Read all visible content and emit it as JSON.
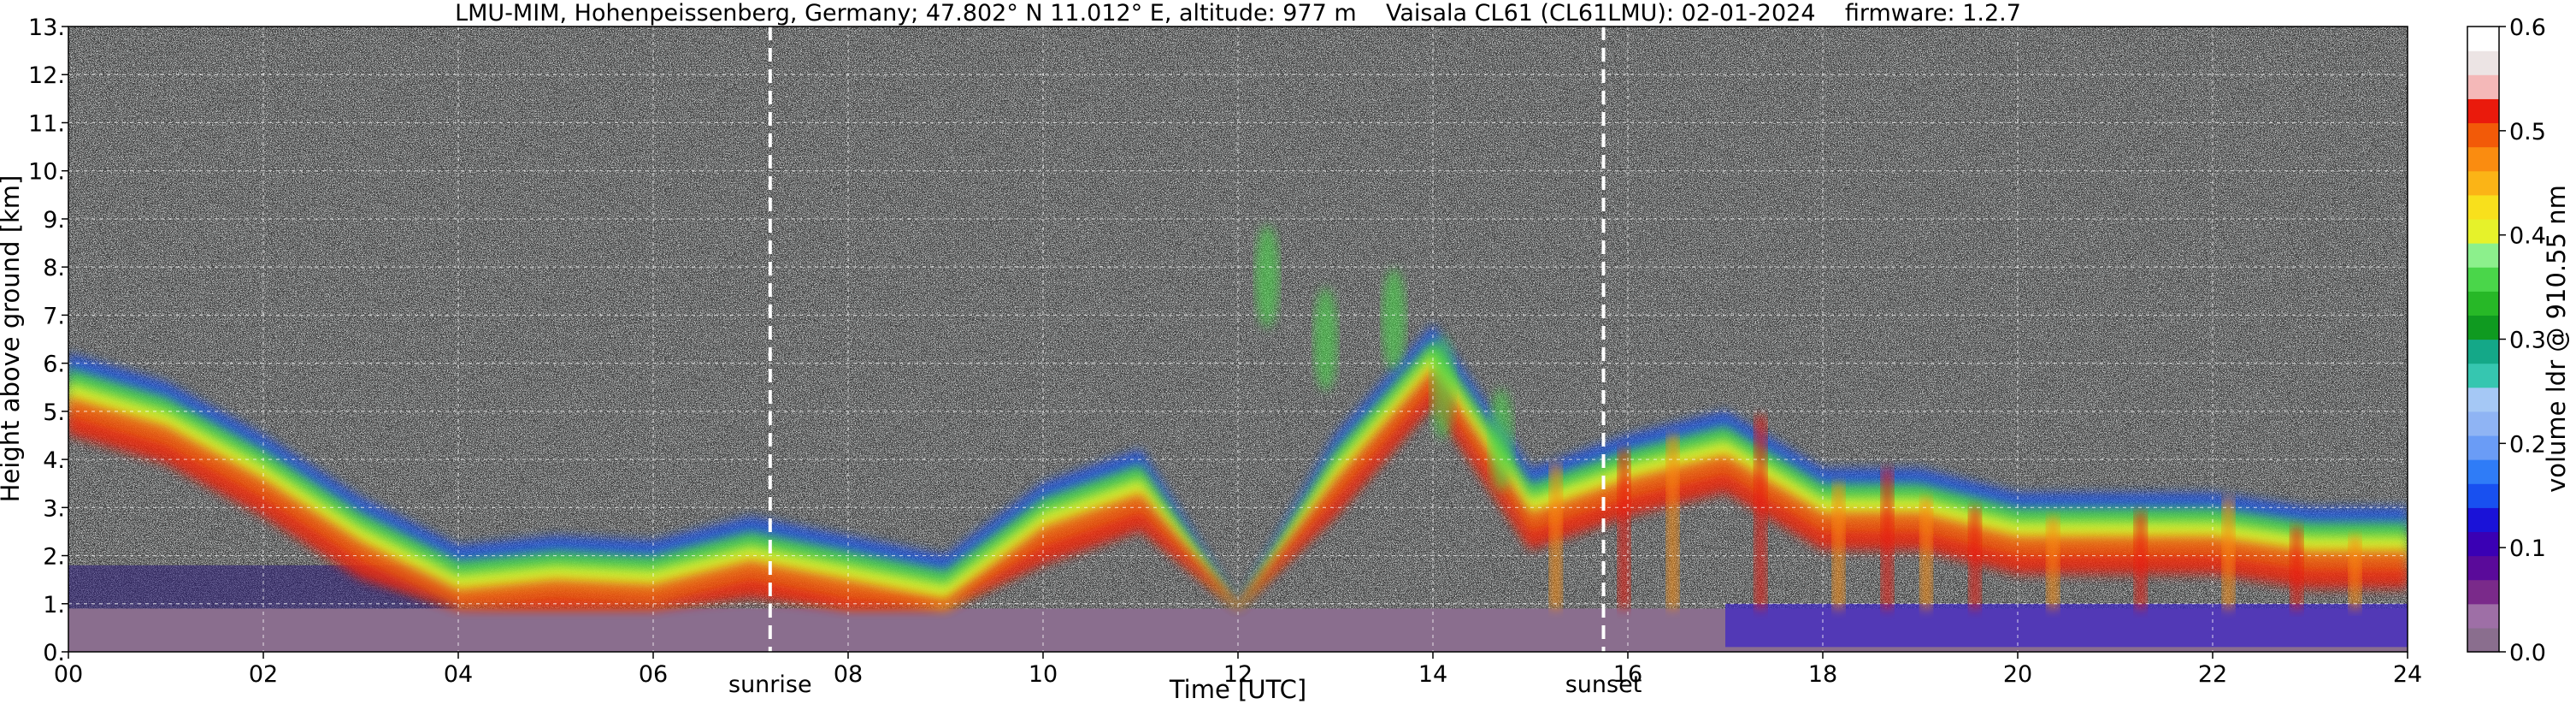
{
  "chart_data": {
    "type": "heatmap",
    "title": "LMU-MIM, Hohenpeissenberg, Germany; 47.802° N 11.012° E, altitude: 977 m    Vaisala CL61 (CL61LMU): 02-01-2024    firmware: 1.2.7",
    "xlabel": "Time [UTC]",
    "ylabel": "Height above ground [km]",
    "colorbar_label": "volume ldr @ 910.55 nm",
    "xlim": [
      0,
      24
    ],
    "ylim": [
      0,
      13
    ],
    "clim": [
      0,
      0.6
    ],
    "x_ticks": [
      0,
      2,
      4,
      6,
      8,
      10,
      12,
      14,
      16,
      18,
      20,
      22,
      24
    ],
    "x_tick_labels": [
      "00",
      "02",
      "04",
      "06",
      "08",
      "10",
      "12",
      "14",
      "16",
      "18",
      "20",
      "22",
      "24"
    ],
    "y_ticks": [
      0,
      1,
      2,
      3,
      4,
      5,
      6,
      7,
      8,
      9,
      10,
      11,
      12,
      13
    ],
    "y_tick_labels": [
      "0.",
      "1.",
      "2.",
      "3.",
      "4.",
      "5.",
      "6.",
      "7.",
      "8.",
      "9.",
      "10.",
      "11.",
      "12.",
      "13."
    ],
    "colorbar_ticks": [
      0.0,
      0.1,
      0.2,
      0.3,
      0.4,
      0.5,
      0.6
    ],
    "colorbar_tick_labels": [
      "0.0",
      "0.1",
      "0.2",
      "0.3",
      "0.4",
      "0.5",
      "0.6"
    ],
    "grid": true,
    "colormap": [
      "#8a6e8e",
      "#9e6fa6",
      "#7a2a8a",
      "#5a0a9a",
      "#3a00b4",
      "#1a12d8",
      "#1850f0",
      "#2f7cf7",
      "#6a9cf6",
      "#8fb4f4",
      "#a5c8f5",
      "#36c6b0",
      "#14a888",
      "#0f9a20",
      "#27b827",
      "#4ad64a",
      "#8cf08c",
      "#e6f22a",
      "#f8e01c",
      "#fbb416",
      "#fa8c10",
      "#f25a08",
      "#ea1a0c",
      "#f4b8b8",
      "#ece4e4",
      "#ffffff"
    ],
    "annotations": [
      {
        "text": "sunrise",
        "x": 7.2
      },
      {
        "text": "sunset",
        "x": 15.75
      }
    ],
    "features": {
      "surface_layer_km": [
        0,
        0.9
      ],
      "cloud_layer_top_km": [
        [
          0,
          6.2
        ],
        [
          1,
          5.6
        ],
        [
          2,
          4.5
        ],
        [
          3,
          3.2
        ],
        [
          4,
          2.2
        ],
        [
          5,
          2.4
        ],
        [
          6,
          2.3
        ],
        [
          7,
          2.8
        ],
        [
          8,
          2.4
        ],
        [
          9,
          2.0
        ],
        [
          10,
          3.5
        ],
        [
          11,
          4.2
        ],
        [
          12,
          1.0
        ],
        [
          13,
          4.5
        ],
        [
          14,
          6.8
        ],
        [
          15,
          3.8
        ],
        [
          16,
          4.5
        ],
        [
          17,
          5.0
        ],
        [
          18,
          3.8
        ],
        [
          19,
          3.8
        ],
        [
          20,
          3.3
        ],
        [
          21,
          3.3
        ],
        [
          22,
          3.3
        ],
        [
          23,
          3.0
        ],
        [
          24,
          3.0
        ]
      ]
    }
  }
}
